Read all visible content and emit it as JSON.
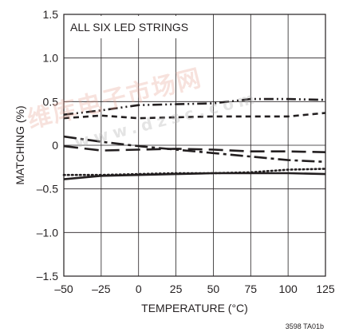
{
  "chart_data": {
    "type": "line",
    "title": "ALL SIX LED STRINGS",
    "xlabel": "TEMPERATURE (°C)",
    "ylabel": "MATCHING (%)",
    "figure_id": "3598 TA01b",
    "xlim": [
      -50,
      125
    ],
    "ylim": [
      -1.5,
      1.5
    ],
    "xticks": [
      -50,
      -25,
      0,
      25,
      50,
      75,
      100,
      125
    ],
    "yticks": [
      -1.5,
      -1.0,
      -0.5,
      0,
      0.5,
      1.0,
      1.5
    ],
    "xtick_labels": [
      "–50",
      "–25",
      "0",
      "25",
      "50",
      "75",
      "100",
      "125"
    ],
    "ytick_labels": [
      "–1.5",
      "–1.0",
      "–0.5",
      "0",
      "0.5",
      "1.0",
      "1.5"
    ],
    "grid": true,
    "series": [
      {
        "style": "dash-dot-dot",
        "x": [
          -50,
          -25,
          0,
          25,
          50,
          75,
          100,
          125
        ],
        "y": [
          0.35,
          0.4,
          0.46,
          0.47,
          0.48,
          0.53,
          0.53,
          0.52
        ]
      },
      {
        "style": "short-dash",
        "x": [
          -50,
          -25,
          0,
          25,
          50,
          75,
          100,
          125
        ],
        "y": [
          0.31,
          0.34,
          0.31,
          0.32,
          0.33,
          0.33,
          0.33,
          0.37
        ]
      },
      {
        "style": "long-short-dash",
        "x": [
          -50,
          -25,
          0,
          25,
          50,
          75,
          100,
          125
        ],
        "y": [
          0.1,
          0.04,
          -0.01,
          -0.05,
          -0.09,
          -0.13,
          -0.17,
          -0.19
        ]
      },
      {
        "style": "long-dash",
        "x": [
          -50,
          -25,
          0,
          25,
          50,
          75,
          100,
          125
        ],
        "y": [
          -0.01,
          -0.06,
          -0.05,
          -0.04,
          -0.05,
          -0.07,
          -0.07,
          -0.08
        ]
      },
      {
        "style": "dotted",
        "x": [
          -50,
          -25,
          0,
          25,
          50,
          75,
          100,
          125
        ],
        "y": [
          -0.34,
          -0.34,
          -0.33,
          -0.32,
          -0.32,
          -0.31,
          -0.28,
          -0.27
        ]
      },
      {
        "style": "solid",
        "x": [
          -50,
          -25,
          0,
          25,
          50,
          75,
          100,
          125
        ],
        "y": [
          -0.39,
          -0.35,
          -0.34,
          -0.33,
          -0.32,
          -0.32,
          -0.32,
          -0.33
        ]
      }
    ],
    "colors": {
      "line": "#231f20",
      "grid": "#231f20"
    }
  },
  "watermark": {
    "text": "维库电子市场网",
    "sub": "www.dzsc.com"
  }
}
